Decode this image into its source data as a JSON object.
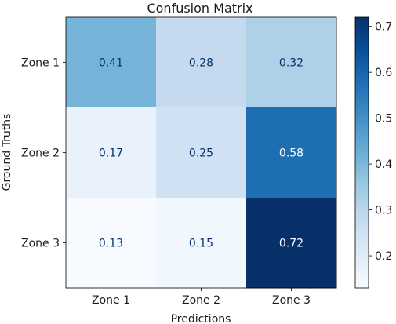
{
  "chart_data": {
    "type": "heatmap",
    "title": "Confusion Matrix",
    "xlabel": "Predictions",
    "ylabel": "Ground Truths",
    "x_categories": [
      "Zone 1",
      "Zone 2",
      "Zone 3"
    ],
    "y_categories": [
      "Zone 1",
      "Zone 2",
      "Zone 3"
    ],
    "values": [
      [
        0.41,
        0.28,
        0.32
      ],
      [
        0.17,
        0.25,
        0.58
      ],
      [
        0.13,
        0.15,
        0.72
      ]
    ],
    "cell_labels": [
      [
        "0.41",
        "0.28",
        "0.32"
      ],
      [
        "0.17",
        "0.25",
        "0.58"
      ],
      [
        "0.13",
        "0.15",
        "0.72"
      ]
    ],
    "colormap": "Blues",
    "colorbar": {
      "range": [
        0.13,
        0.72
      ],
      "ticks": [
        0.2,
        0.3,
        0.4,
        0.5,
        0.6,
        0.7
      ],
      "tick_labels": [
        "0.2",
        "0.3",
        "0.4",
        "0.5",
        "0.6",
        "0.7"
      ]
    },
    "grid": false
  }
}
